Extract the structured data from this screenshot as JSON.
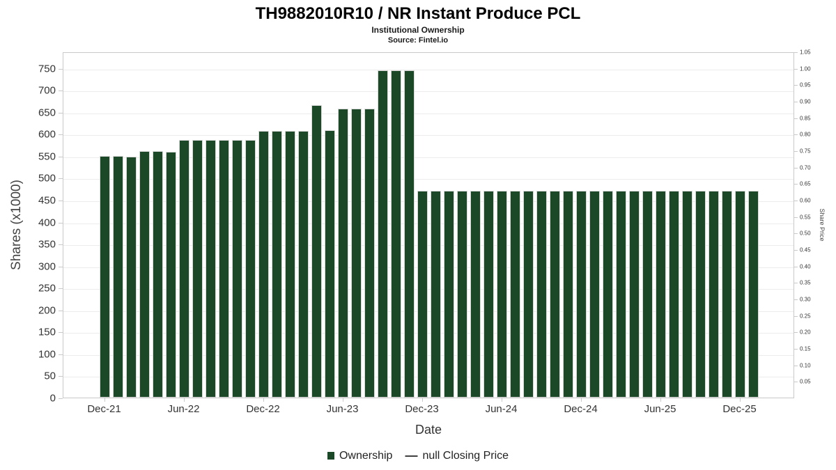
{
  "chart_data": {
    "type": "bar",
    "title": "TH9882010R10 / NR Instant Produce PCL",
    "subtitle": "Institutional Ownership",
    "source": "Source: Fintel.io",
    "xlabel": "Date",
    "ylabel": "Shares (x1000)",
    "ylabel_right": "Share Price",
    "grid": true,
    "legend_position": "bottom",
    "bar_color": "#1b4827",
    "bar_edge_color": "#d8d8d8",
    "ylim_left": [
      0,
      787.5
    ],
    "ytick_step_left": 50,
    "ytick_max_left": 750,
    "ylim_right": [
      0,
      1.05
    ],
    "ytick_step_right": 0.05,
    "xticks": [
      "Dec-21",
      "Jun-22",
      "Dec-22",
      "Jun-23",
      "Dec-23",
      "Jun-24",
      "Dec-24",
      "Jun-25",
      "Dec-25"
    ],
    "categories": [
      "Dec-21",
      "Jan-22",
      "Feb-22",
      "Mar-22",
      "Apr-22",
      "May-22",
      "Jun-22",
      "Jul-22",
      "Aug-22",
      "Sep-22",
      "Oct-22",
      "Nov-22",
      "Dec-22",
      "Jan-23",
      "Feb-23",
      "Mar-23",
      "Apr-23",
      "May-23",
      "Jun-23",
      "Jul-23",
      "Aug-23",
      "Sep-23",
      "Oct-23",
      "Nov-23",
      "Dec-23",
      "Jan-24",
      "Feb-24",
      "Mar-24",
      "Apr-24",
      "May-24",
      "Jun-24",
      "Jul-24",
      "Aug-24",
      "Sep-24",
      "Oct-24",
      "Nov-24",
      "Dec-24",
      "Jan-25",
      "Feb-25",
      "Mar-25",
      "Apr-25",
      "May-25",
      "Jun-25",
      "Jul-25",
      "Aug-25",
      "Sep-25",
      "Oct-25",
      "Nov-25",
      "Dec-25",
      "Jan-26"
    ],
    "values": [
      550,
      550,
      549,
      561,
      561,
      560,
      587,
      587,
      586,
      586,
      586,
      586,
      607,
      607,
      607,
      607,
      665,
      608,
      658,
      658,
      658,
      745,
      745,
      745,
      470,
      470,
      470,
      470,
      470,
      470,
      470,
      470,
      470,
      470,
      470,
      470,
      470,
      470,
      470,
      470,
      470,
      470,
      470,
      470,
      470,
      470,
      470,
      470,
      470,
      470
    ],
    "series_note": "Closing price series is null (no line drawn)"
  },
  "legend": {
    "ownership_label": "Ownership",
    "price_marker": "—",
    "price_label": "null Closing Price"
  }
}
